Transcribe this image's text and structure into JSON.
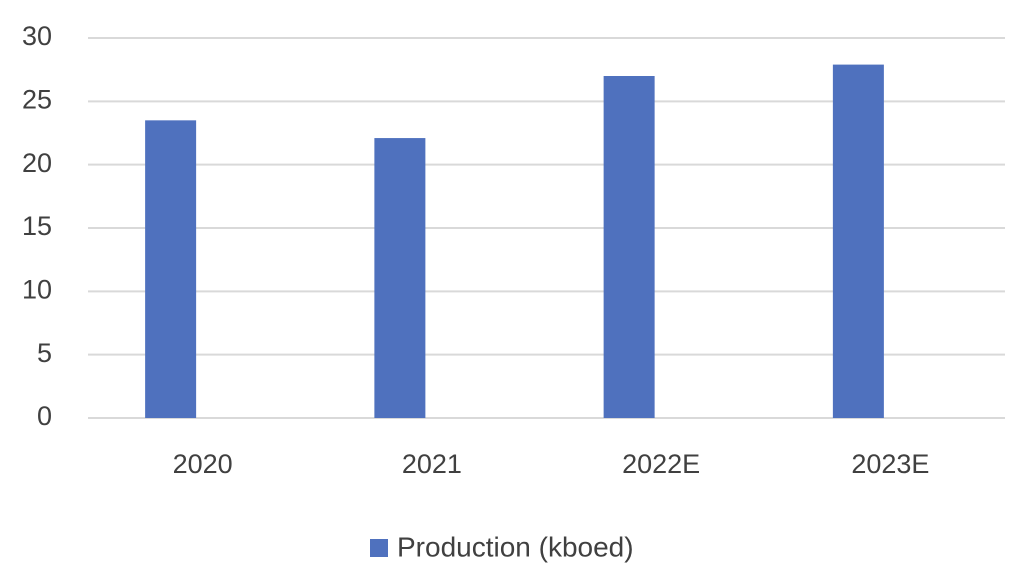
{
  "chart_data": {
    "type": "bar",
    "categories": [
      "2020",
      "2021",
      "2022E",
      "2023E"
    ],
    "series": [
      {
        "name": "Production (kboed)",
        "color": "#4f71be",
        "values": [
          23.5,
          22.1,
          27.0,
          27.9
        ]
      }
    ],
    "ylim": [
      0,
      30
    ],
    "yticks": [
      0,
      5,
      10,
      15,
      20,
      25,
      30
    ],
    "grid": true,
    "legend": "bottom"
  }
}
